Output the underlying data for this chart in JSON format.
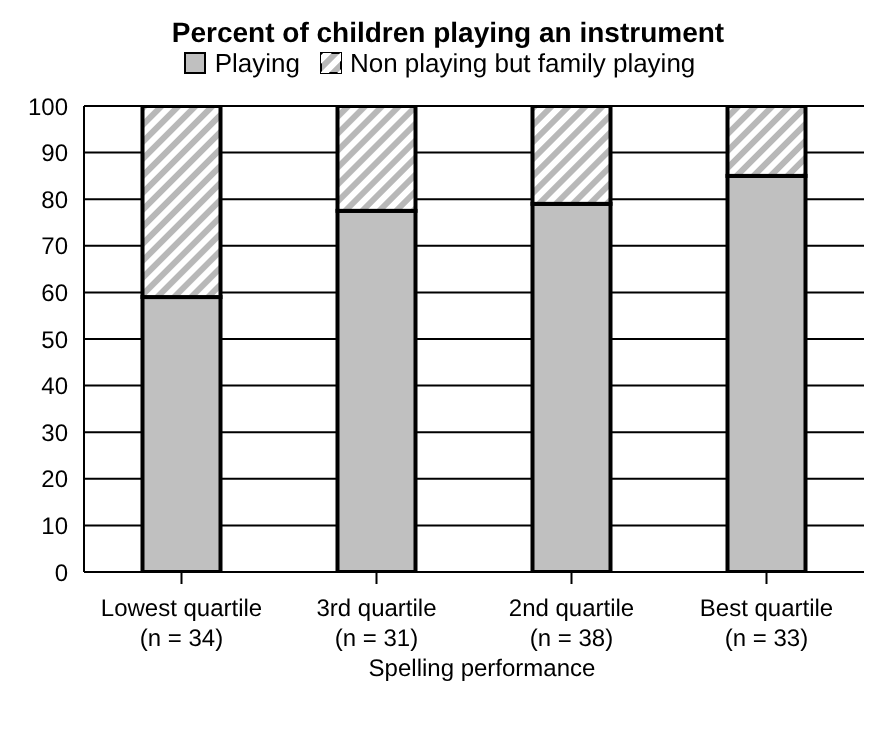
{
  "chart_data": {
    "type": "bar",
    "title": "Percent of children playing an instrument",
    "xlabel": "Spelling performance",
    "categories": [
      "Lowest quartile (n = 34)",
      "3rd quartile (n = 31)",
      "2nd quartile (n = 38)",
      "Best quartile (n = 33)"
    ],
    "series": [
      {
        "name": "Playing",
        "color": "#c0c0c0",
        "values": [
          59,
          77.5,
          79,
          85
        ]
      },
      {
        "name": "Non playing but family playing",
        "color": "#b8b8b8",
        "values": [
          41,
          22.5,
          21,
          15
        ]
      }
    ],
    "stacked": true,
    "ylim": [
      0,
      100
    ],
    "yticks": [
      0,
      10,
      20,
      30,
      40,
      50,
      60,
      70,
      80,
      90,
      100
    ],
    "grid": "y",
    "legend": "top"
  }
}
